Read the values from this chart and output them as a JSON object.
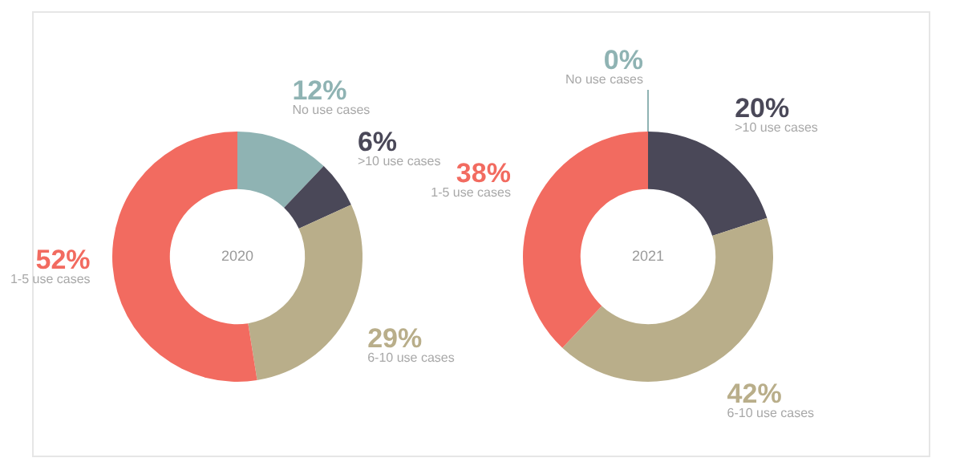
{
  "chart_data": [
    {
      "type": "donut",
      "title": "2020",
      "categories": [
        "No use cases",
        ">10 use cases",
        "6-10 use cases",
        "1-5 use cases"
      ],
      "values": [
        12,
        6,
        29,
        52
      ],
      "colors": [
        "#8fb3b3",
        "#4a4858",
        "#b9ae8a",
        "#f26b60"
      ],
      "value_labels": [
        "12%",
        "6%",
        "29%",
        "52%"
      ],
      "legend": false
    },
    {
      "type": "donut",
      "title": "2021",
      "categories": [
        "No use cases",
        ">10 use cases",
        "6-10 use cases",
        "1-5 use cases"
      ],
      "values": [
        0,
        20,
        42,
        38
      ],
      "colors": [
        "#8fb3b3",
        "#4a4858",
        "#b9ae8a",
        "#f26b60"
      ],
      "value_labels": [
        "0%",
        "20%",
        "42%",
        "38%"
      ],
      "legend": false
    }
  ]
}
